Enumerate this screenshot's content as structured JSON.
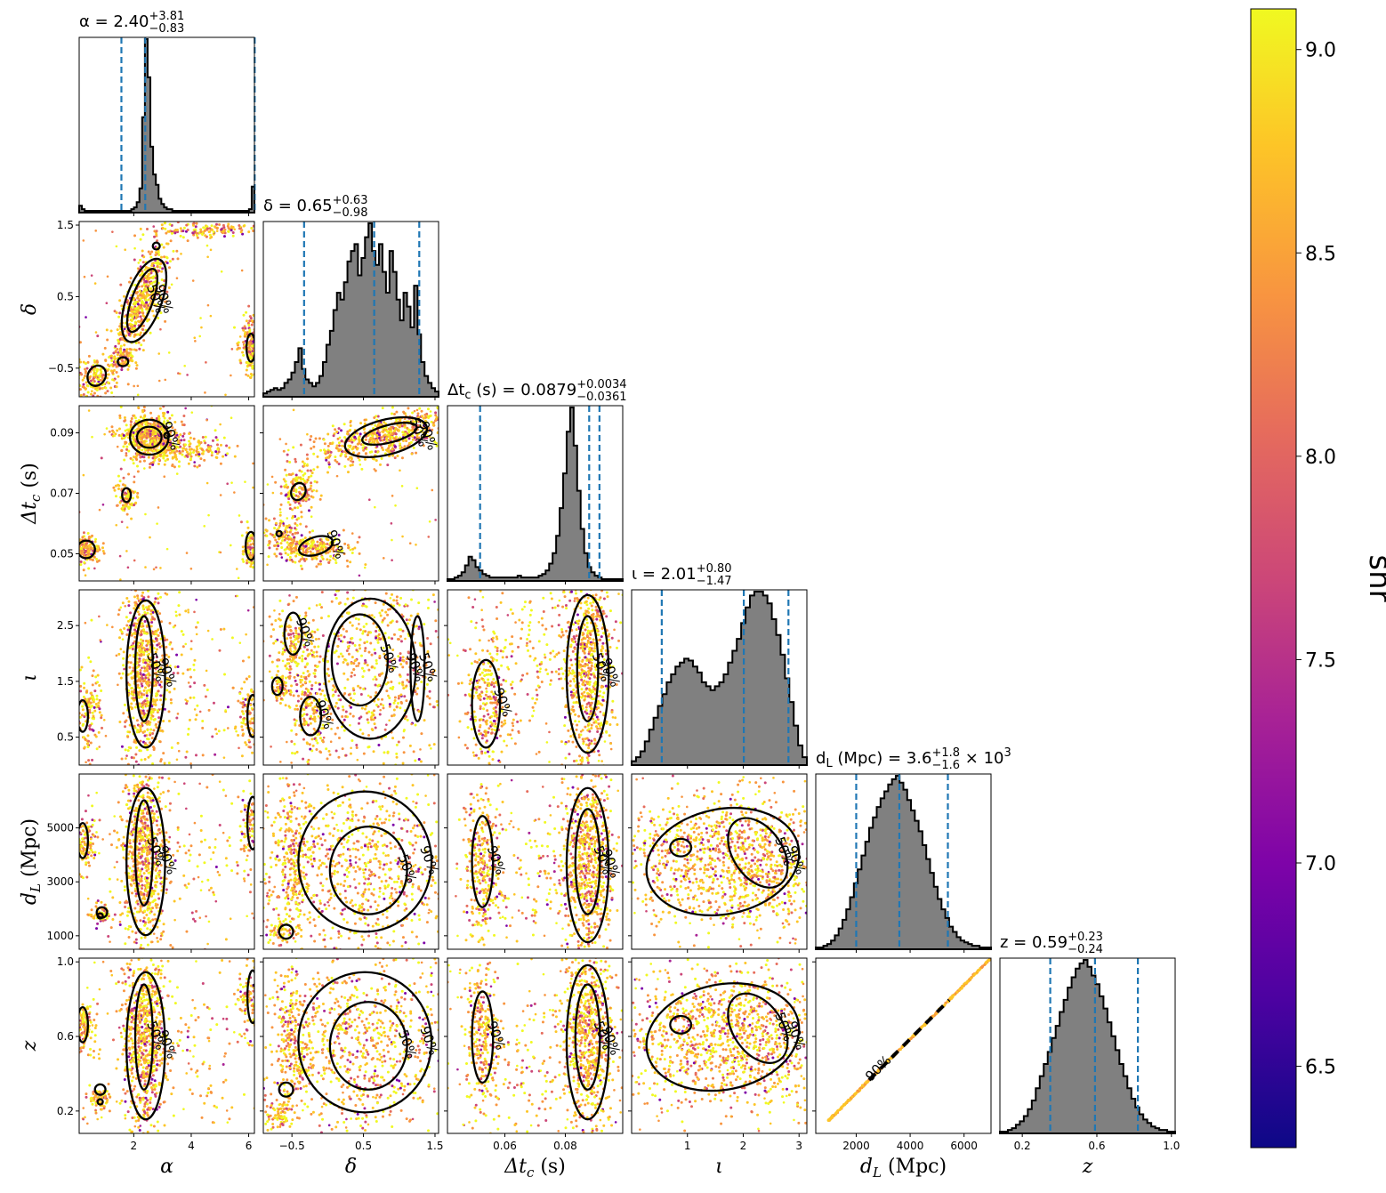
{
  "chart_data": {
    "type": "scatter",
    "subtype": "corner-plot",
    "parameters": [
      {
        "key": "alpha",
        "label": "α",
        "range": [
          0.1,
          6.2
        ],
        "ticks": [
          2,
          4,
          6
        ],
        "ticklabels": [
          "2",
          "4",
          "6"
        ],
        "title": "α = 2.40",
        "sup": "+3.81",
        "sub": "−0.83",
        "median": 2.4,
        "low": 1.57,
        "high": 6.21
      },
      {
        "key": "delta",
        "label": "δ",
        "range": [
          -0.9,
          1.55
        ],
        "ticks": [
          -0.5,
          0.5,
          1.5
        ],
        "ticklabels": [
          "−0.5",
          "0.5",
          "1.5"
        ],
        "title": "δ = 0.65",
        "sup": "+0.63",
        "sub": "−0.98",
        "median": 0.65,
        "low": -0.33,
        "high": 1.28
      },
      {
        "key": "dtc",
        "label": "Δt_c (s)",
        "range": [
          0.041,
          0.099
        ],
        "ticks": [
          0.05,
          0.07,
          0.09
        ],
        "ticklabels": [
          "0.05",
          "0.07",
          "0.09"
        ],
        "xticks": [
          0.06,
          0.08
        ],
        "xticklabels": [
          "0.06",
          "0.08"
        ],
        "title": "Δt_c (s) = 0.0879",
        "sup": "+0.0034",
        "sub": "−0.0361",
        "median": 0.0879,
        "low": 0.0518,
        "high": 0.0913
      },
      {
        "key": "iota",
        "label": "ι",
        "range": [
          0.0,
          3.14
        ],
        "ticks": [
          0.5,
          1.5,
          2.5
        ],
        "ticklabels": [
          "0.5",
          "1.5",
          "2.5"
        ],
        "xticks": [
          1,
          2,
          3
        ],
        "xticklabels": [
          "1",
          "2",
          "3"
        ],
        "title": "ι = 2.01",
        "sup": "+0.80",
        "sub": "−1.47",
        "median": 2.01,
        "low": 0.54,
        "high": 2.81
      },
      {
        "key": "dL",
        "label": "d_L (Mpc)",
        "range": [
          500,
          7000
        ],
        "ticks": [
          1000,
          3000,
          5000
        ],
        "ticklabels": [
          "1000",
          "3000",
          "5000"
        ],
        "xticks": [
          2000,
          4000,
          6000
        ],
        "xticklabels": [
          "2000",
          "4000",
          "6000"
        ],
        "title": "d_L (Mpc) = 3.6",
        "sup": "+1.8",
        "sub": "−1.6",
        "title_suffix": "× 10",
        "title_exp": "3",
        "median": 3600,
        "low": 2000,
        "high": 5400
      },
      {
        "key": "z",
        "label": "z",
        "range": [
          0.08,
          1.02
        ],
        "ticks": [
          0.2,
          0.6,
          1.0
        ],
        "ticklabels": [
          "0.2",
          "0.6",
          "1.0"
        ],
        "xticks": [
          0.2,
          0.6,
          1.0
        ],
        "xticklabels": [
          "0.2",
          "0.6",
          "1.0"
        ],
        "title": "z = 0.59",
        "sup": "+0.23",
        "sub": "−0.24",
        "median": 0.59,
        "low": 0.35,
        "high": 0.82
      }
    ],
    "histograms": {
      "alpha": [
        4,
        2,
        1,
        1,
        1,
        1,
        1,
        1,
        1,
        1,
        1,
        1,
        1,
        1,
        1,
        1,
        1,
        1,
        1,
        2,
        3,
        6,
        14,
        55,
        100,
        78,
        38,
        22,
        16,
        8,
        5,
        3,
        2,
        2,
        1,
        1,
        1,
        1,
        1,
        1,
        1,
        1,
        1,
        1,
        1,
        1,
        1,
        1,
        1,
        1,
        1,
        1,
        1,
        1,
        1,
        1,
        1,
        1,
        1,
        1,
        1,
        1,
        2,
        15
      ],
      "delta": [
        2,
        3,
        4,
        5,
        4,
        5,
        8,
        10,
        14,
        20,
        28,
        16,
        10,
        8,
        6,
        8,
        12,
        20,
        30,
        38,
        50,
        60,
        56,
        66,
        78,
        84,
        88,
        70,
        80,
        92,
        100,
        84,
        76,
        88,
        72,
        60,
        84,
        72,
        56,
        44,
        60,
        52,
        40,
        64,
        36,
        20,
        12,
        8,
        5,
        3
      ],
      "dtc": [
        1,
        1,
        2,
        3,
        5,
        9,
        14,
        12,
        8,
        6,
        4,
        3,
        2,
        2,
        2,
        2,
        2,
        2,
        2,
        2,
        3,
        2,
        2,
        2,
        2,
        2,
        3,
        4,
        6,
        10,
        16,
        26,
        42,
        62,
        86,
        100,
        78,
        52,
        30,
        16,
        8,
        5,
        3,
        2,
        1,
        1,
        1,
        1,
        1,
        1
      ],
      "iota": [
        2,
        4,
        7,
        12,
        18,
        24,
        30,
        36,
        42,
        46,
        50,
        52,
        54,
        53,
        50,
        47,
        42,
        40,
        38,
        40,
        42,
        46,
        52,
        58,
        64,
        72,
        80,
        86,
        88,
        88,
        86,
        82,
        74,
        66,
        56,
        44,
        32,
        20,
        10,
        4
      ],
      "dL": [
        1,
        1,
        2,
        3,
        5,
        8,
        12,
        17,
        23,
        30,
        38,
        46,
        54,
        62,
        70,
        76,
        82,
        87,
        91,
        95,
        98,
        100,
        96,
        92,
        86,
        80,
        74,
        68,
        60,
        52,
        44,
        36,
        29,
        23,
        18,
        13,
        10,
        7,
        5,
        4,
        3,
        2,
        2,
        1,
        1,
        1
      ],
      "z": [
        1,
        1,
        2,
        3,
        5,
        7,
        10,
        14,
        19,
        26,
        33,
        40,
        47,
        55,
        62,
        70,
        77,
        84,
        90,
        95,
        98,
        100,
        96,
        91,
        86,
        79,
        72,
        64,
        56,
        48,
        40,
        33,
        26,
        20,
        15,
        11,
        8,
        6,
        4,
        3,
        2,
        2,
        1,
        1
      ]
    },
    "contour_levels": [
      "50%",
      "90%"
    ],
    "colorbar": {
      "label": "snr",
      "min": 6.3,
      "max": 9.1,
      "ticks": [
        6.5,
        7.0,
        7.5,
        8.0,
        8.5,
        9.0
      ],
      "ticklabels": [
        "6.5",
        "7.0",
        "7.5",
        "8.0",
        "8.5",
        "9.0"
      ],
      "colormap": "plasma"
    },
    "colors": {
      "hist_fill": "#808080",
      "hist_edge": "#000000",
      "quantile_line": "#1f77b4",
      "contour": "#000000"
    }
  }
}
